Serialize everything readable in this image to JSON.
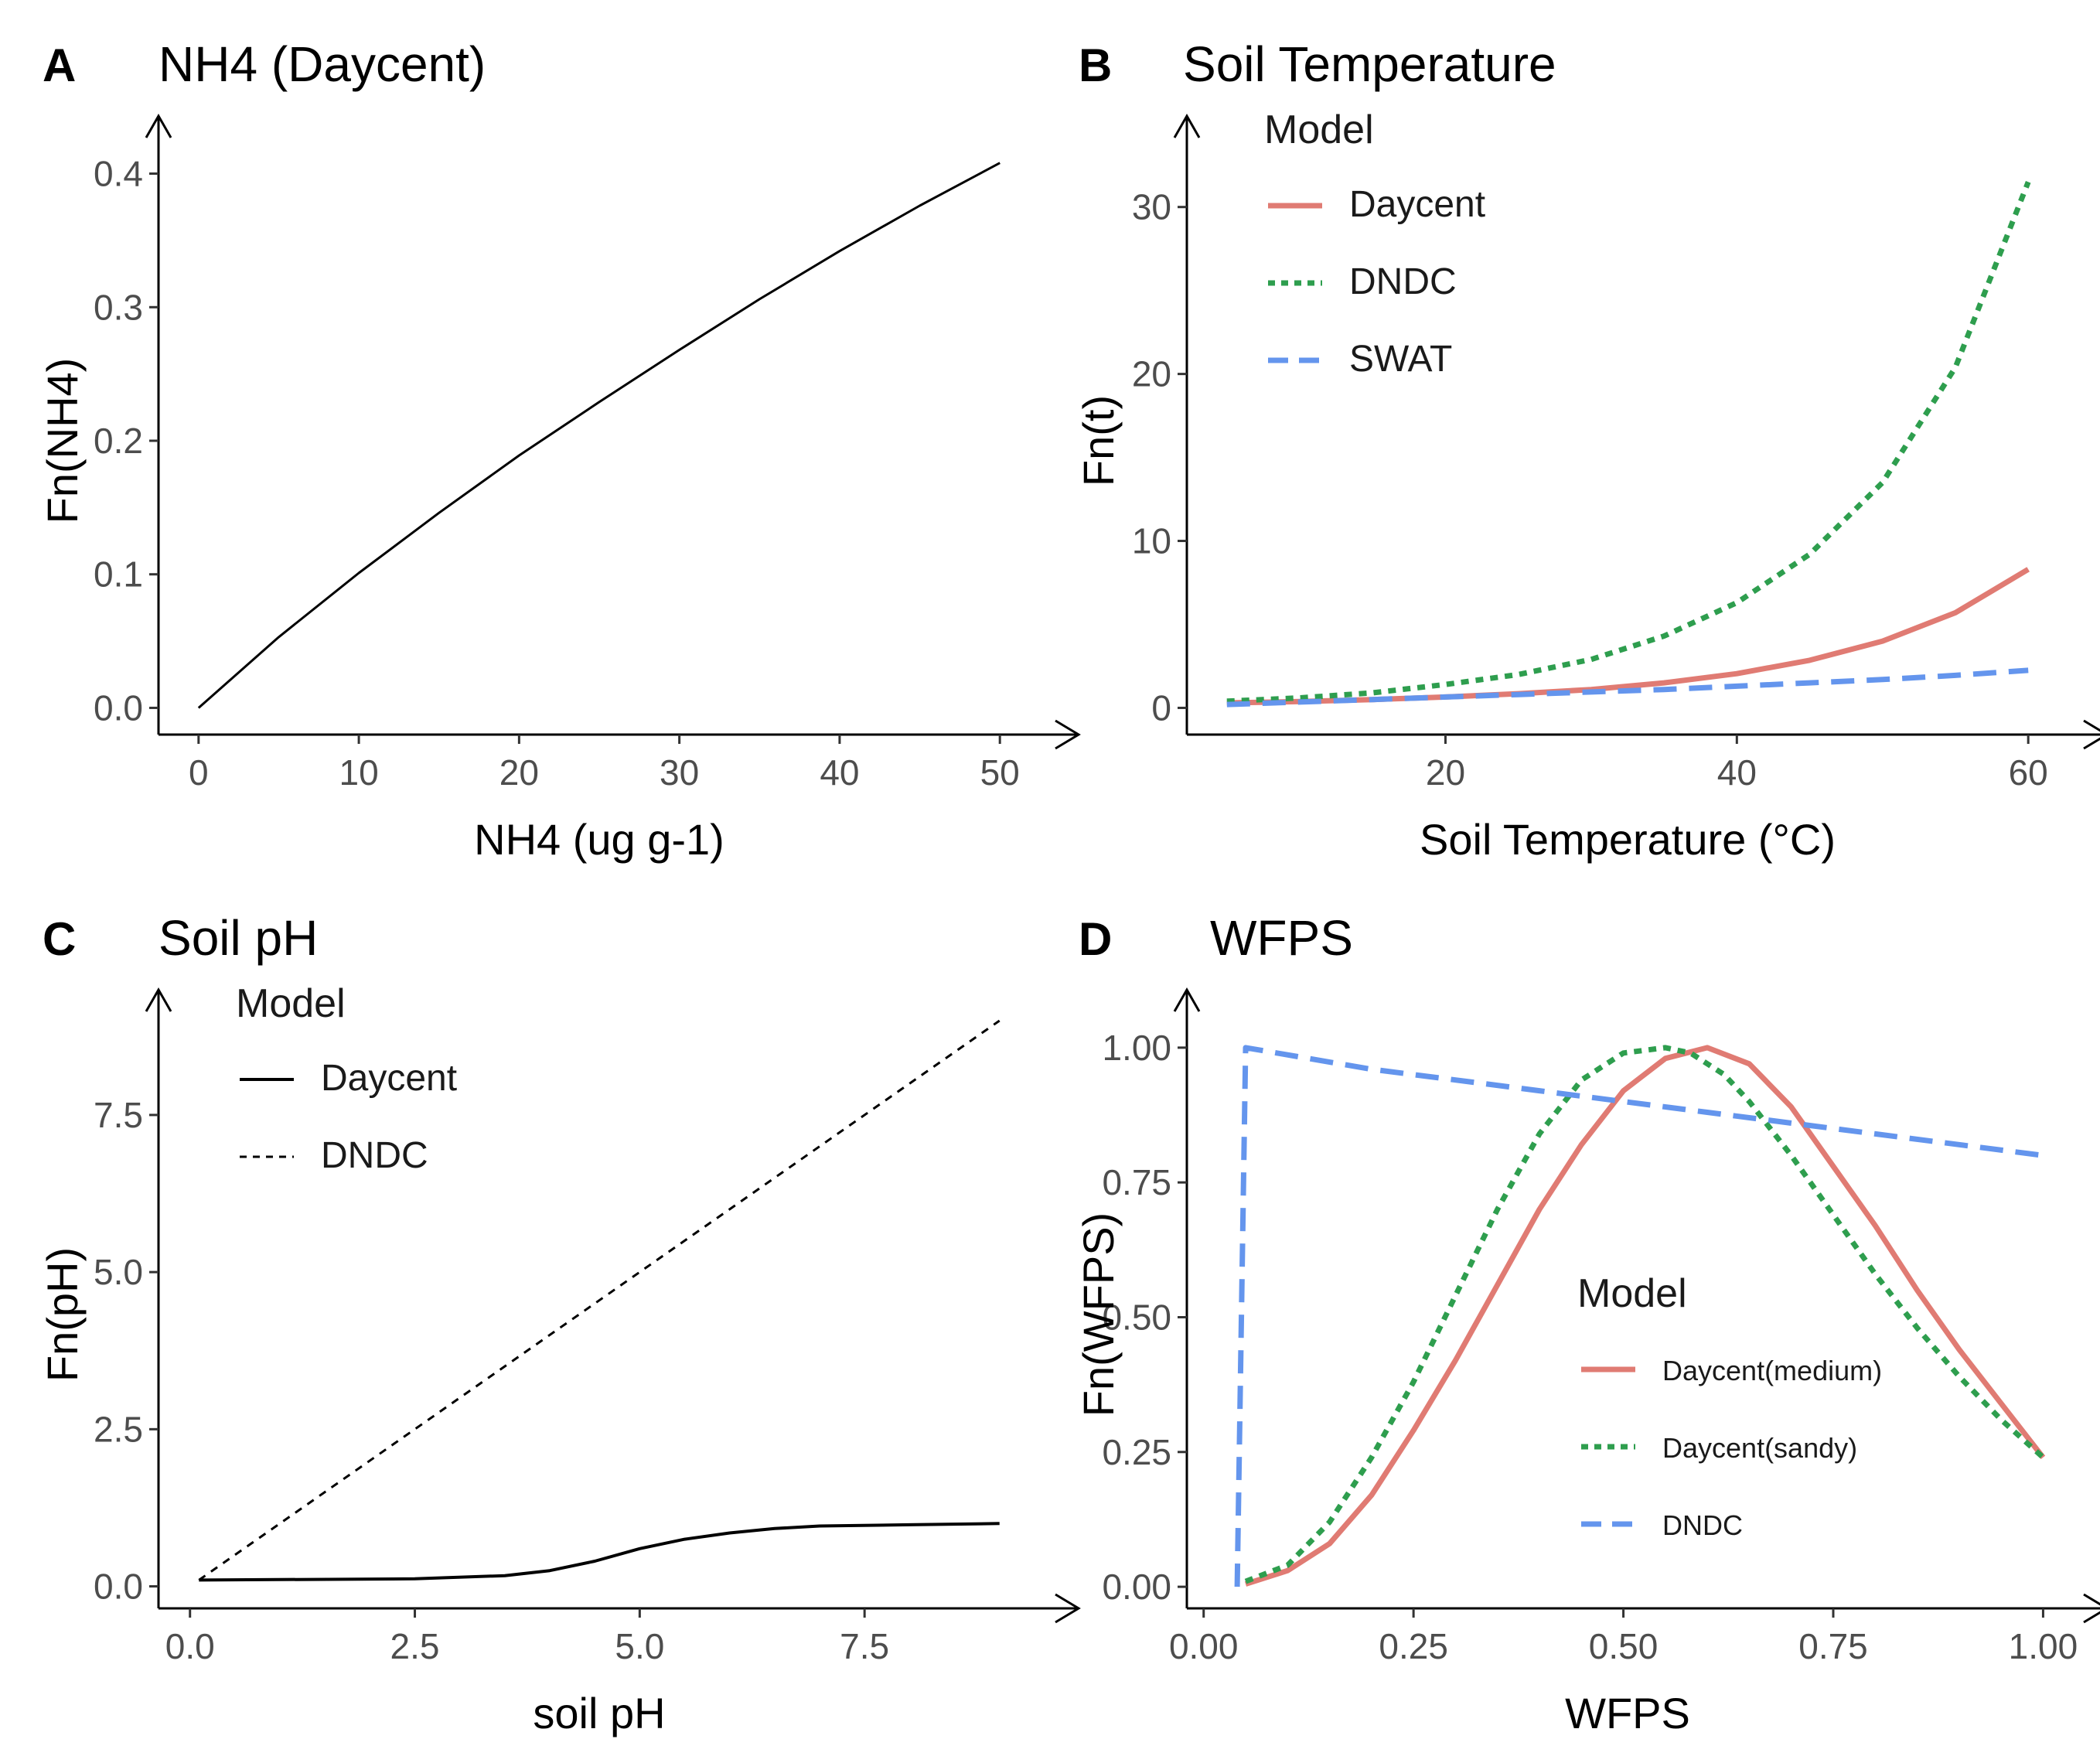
{
  "chart_data": [
    {
      "letter": "A",
      "title": "NH4 (Daycent)",
      "type": "line",
      "xlabel": "NH4 (ug g-1)",
      "ylabel": "Fn(NH4)",
      "xlim": [
        -2.5,
        52.5
      ],
      "ylim": [
        -0.02,
        0.42
      ],
      "xticks": [
        0,
        10,
        20,
        30,
        40,
        50
      ],
      "xtick_labels": [
        "0",
        "10",
        "20",
        "30",
        "40",
        "50"
      ],
      "yticks": [
        0.0,
        0.1,
        0.2,
        0.3,
        0.4
      ],
      "ytick_labels": [
        "0.0",
        "0.1",
        "0.2",
        "0.3",
        "0.4"
      ],
      "legend": null,
      "series": [
        {
          "name": "Daycent",
          "color": "#000000",
          "dash": "solid",
          "width": 3,
          "x": [
            0,
            5,
            10,
            15,
            20,
            25,
            30,
            35,
            40,
            45,
            50
          ],
          "y": [
            0.0,
            0.053,
            0.101,
            0.146,
            0.189,
            0.229,
            0.268,
            0.306,
            0.342,
            0.376,
            0.408
          ]
        }
      ]
    },
    {
      "letter": "B",
      "title": "Soil Temperature",
      "type": "line",
      "xlabel": "Soil Temperature (°C)",
      "ylabel": "Fn(t)",
      "xlim": [
        2.25,
        62.75
      ],
      "ylim": [
        -1.6,
        33.6
      ],
      "xticks": [
        20,
        40,
        60
      ],
      "xtick_labels": [
        "20",
        "40",
        "60"
      ],
      "yticks": [
        0,
        10,
        20,
        30
      ],
      "ytick_labels": [
        "0",
        "10",
        "20",
        "30"
      ],
      "legend": {
        "title": "Model",
        "position": "top-left",
        "label_size": "large"
      },
      "series": [
        {
          "name": "Daycent",
          "color": "#E07B73",
          "dash": "solid",
          "width": 7,
          "x": [
            5,
            10,
            15,
            20,
            25,
            30,
            35,
            40,
            45,
            50,
            55,
            60
          ],
          "y": [
            0.3,
            0.38,
            0.5,
            0.65,
            0.85,
            1.1,
            1.5,
            2.05,
            2.85,
            4.0,
            5.7,
            8.3
          ]
        },
        {
          "name": "DNDC",
          "color": "#2E9E4E",
          "dash": "dotted",
          "width": 7,
          "x": [
            5,
            10,
            15,
            20,
            25,
            30,
            35,
            40,
            45,
            50,
            55,
            60
          ],
          "y": [
            0.4,
            0.6,
            0.9,
            1.4,
            2.0,
            2.9,
            4.3,
            6.3,
            9.2,
            13.5,
            20.4,
            31.5
          ]
        },
        {
          "name": "SWAT",
          "color": "#6495ED",
          "dash": "dashed",
          "width": 7,
          "x": [
            5,
            10,
            15,
            20,
            25,
            30,
            35,
            40,
            45,
            50,
            55,
            60
          ],
          "y": [
            0.2,
            0.35,
            0.5,
            0.65,
            0.8,
            0.95,
            1.1,
            1.3,
            1.5,
            1.7,
            1.95,
            2.25
          ]
        }
      ]
    },
    {
      "letter": "C",
      "title": "Soil pH",
      "type": "line",
      "xlabel": "soil pH",
      "ylabel": "Fn(pH)",
      "xlim": [
        -0.35,
        9.45
      ],
      "ylim": [
        -0.35,
        9.0
      ],
      "xticks": [
        0.0,
        2.5,
        5.0,
        7.5
      ],
      "xtick_labels": [
        "0.0",
        "2.5",
        "5.0",
        "7.5"
      ],
      "yticks": [
        0.0,
        2.5,
        5.0,
        7.5
      ],
      "ytick_labels": [
        "0.0",
        "2.5",
        "5.0",
        "7.5"
      ],
      "legend": {
        "title": "Model",
        "position": "top-left",
        "label_size": "large"
      },
      "series": [
        {
          "name": "Daycent",
          "color": "#000000",
          "dash": "solid",
          "width": 4,
          "x": [
            0.1,
            2.5,
            3.5,
            4.0,
            4.5,
            5.0,
            5.5,
            6.0,
            6.5,
            7.0,
            8.0,
            9.0
          ],
          "y": [
            0.1,
            0.12,
            0.17,
            0.25,
            0.4,
            0.6,
            0.75,
            0.85,
            0.92,
            0.96,
            0.98,
            1.0
          ]
        },
        {
          "name": "DNDC",
          "color": "#000000",
          "dash": "dotted",
          "width": 3,
          "x": [
            0.1,
            9.0
          ],
          "y": [
            0.1,
            9.0
          ]
        }
      ]
    },
    {
      "letter": "D",
      "title": "WFPS",
      "type": "line",
      "xlabel": "WFPS",
      "ylabel": "Fn(WFPS)",
      "xlim": [
        -0.02,
        1.03
      ],
      "ylim": [
        -0.04,
        1.05
      ],
      "xticks": [
        0.0,
        0.25,
        0.5,
        0.75,
        1.0
      ],
      "xtick_labels": [
        "0.00",
        "0.25",
        "0.50",
        "0.75",
        "1.00"
      ],
      "yticks": [
        0.0,
        0.25,
        0.5,
        0.75,
        1.0
      ],
      "ytick_labels": [
        "0.00",
        "0.25",
        "0.50",
        "0.75",
        "1.00"
      ],
      "legend": {
        "title": "Model",
        "position": "lower-center",
        "label_size": "small"
      },
      "series": [
        {
          "name": "Daycent(medium)",
          "color": "#E07B73",
          "dash": "solid",
          "width": 7,
          "x": [
            0.05,
            0.1,
            0.15,
            0.2,
            0.25,
            0.3,
            0.35,
            0.4,
            0.45,
            0.5,
            0.55,
            0.6,
            0.65,
            0.7,
            0.75,
            0.8,
            0.85,
            0.9,
            0.95,
            1.0
          ],
          "y": [
            0.005,
            0.03,
            0.08,
            0.17,
            0.29,
            0.42,
            0.56,
            0.7,
            0.82,
            0.92,
            0.98,
            1.0,
            0.97,
            0.89,
            0.78,
            0.67,
            0.55,
            0.44,
            0.34,
            0.24
          ]
        },
        {
          "name": "Daycent(sandy)",
          "color": "#2E9E4E",
          "dash": "dotted",
          "width": 7,
          "x": [
            0.05,
            0.1,
            0.15,
            0.2,
            0.25,
            0.3,
            0.35,
            0.4,
            0.45,
            0.5,
            0.55,
            0.58,
            0.62,
            0.65,
            0.7,
            0.75,
            0.8,
            0.85,
            0.9,
            0.95,
            1.0
          ],
          "y": [
            0.01,
            0.04,
            0.12,
            0.24,
            0.38,
            0.54,
            0.7,
            0.84,
            0.94,
            0.99,
            1.0,
            0.99,
            0.95,
            0.9,
            0.8,
            0.69,
            0.58,
            0.48,
            0.39,
            0.31,
            0.24
          ]
        },
        {
          "name": "DNDC",
          "color": "#6495ED",
          "dash": "dashed",
          "width": 7,
          "x": [
            0.04,
            0.05,
            0.2,
            0.4,
            0.6,
            0.8,
            1.0
          ],
          "y": [
            0.0,
            1.0,
            0.96,
            0.92,
            0.88,
            0.84,
            0.8
          ]
        }
      ]
    }
  ]
}
